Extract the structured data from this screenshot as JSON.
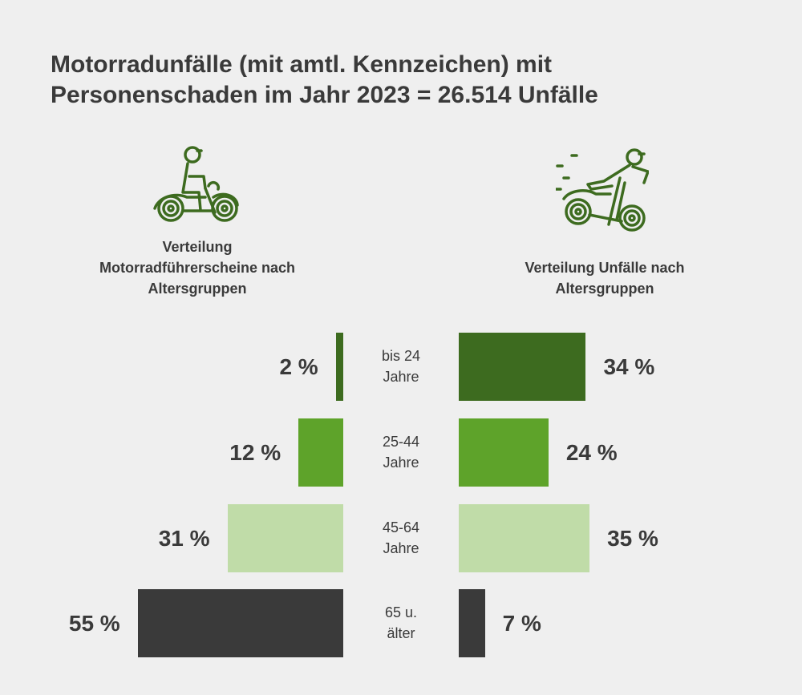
{
  "title_line1": "Motorradunfälle (mit amtl. Kennzeichen) mit",
  "title_line2": "Personenschaden im Jahr 2023 = 26.514 Unfälle",
  "left_heading": [
    "Verteilung",
    "Motorradführerscheine nach",
    "Altersgruppen"
  ],
  "right_heading": [
    "Verteilung Unfälle nach",
    "Altersgruppen"
  ],
  "icons": {
    "left": "motorcycle-rider-icon",
    "right": "motorcycle-accident-icon",
    "color": "#3d6b1f"
  },
  "chart_data": {
    "type": "bar",
    "orientation": "horizontal-butterfly",
    "categories": [
      [
        "bis 24",
        "Jahre"
      ],
      [
        "25-44",
        "Jahre"
      ],
      [
        "45-64",
        "Jahre"
      ],
      [
        "65 u.",
        "älter"
      ]
    ],
    "series": [
      {
        "name": "Verteilung Motorradführerscheine nach Altersgruppen",
        "values": [
          2,
          12,
          31,
          55
        ],
        "labels": [
          "2 %",
          "12 %",
          "31 %",
          "55 %"
        ]
      },
      {
        "name": "Verteilung Unfälle nach Altersgruppen",
        "values": [
          34,
          24,
          35,
          7
        ],
        "labels": [
          "34 %",
          "24 %",
          "35 %",
          "7 %"
        ]
      }
    ],
    "colors": [
      "#3d6b1f",
      "#5ea32a",
      "#c0dca8",
      "#3a3a3a"
    ],
    "unit": "%"
  }
}
